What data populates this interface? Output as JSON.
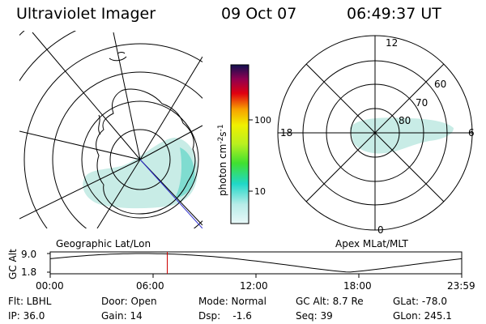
{
  "header": {
    "title": "Ultraviolet Imager",
    "date": "09 Oct 07",
    "time": "06:49:37 UT"
  },
  "panels": {
    "left_label": "Geographic Lat/Lon",
    "right_label": "Apex MLat/MLT"
  },
  "colorbar": {
    "label": "photon cm",
    "label_exp1": "-2",
    "label_mid": "s",
    "label_exp2": "-1",
    "tick_10": "10",
    "tick_100": "100",
    "stops": [
      "#d8f4f4",
      "#20d8c8",
      "#40e030",
      "#b8f020",
      "#f0f000",
      "#f8a000",
      "#e00010",
      "#900050",
      "#101050"
    ]
  },
  "polar": {
    "mlt_12": "12",
    "mlt_18": "18",
    "mlt_6": "6",
    "mlt_0": "0",
    "lat_60": "60",
    "lat_70": "70",
    "lat_80": "80"
  },
  "timeline": {
    "axis_label": "GC Alt",
    "y_max": "9.0",
    "y_min": "1.8",
    "x_ticks": [
      "00:00",
      "06:00",
      "12:00",
      "18:00",
      "23:59"
    ],
    "current_time_hours": 6.827
  },
  "status": {
    "flt": "Flt: LBHL",
    "ip": "IP: 36.0",
    "door": "Door: Open",
    "gain": "Gain: 14",
    "mode": "Mode: Normal",
    "dsp": "Dsp:    -1.6",
    "gcalt": "GC Alt: 8.7 Re",
    "seq": "Seq: 39",
    "glat": "GLat: -78.0",
    "glon": "GLon: 245.1"
  },
  "colors": {
    "aurora": "#c8ece6",
    "aurora_bright": "#7fdcd0",
    "time_marker": "#cc0000",
    "track_line": "#3030d0"
  }
}
